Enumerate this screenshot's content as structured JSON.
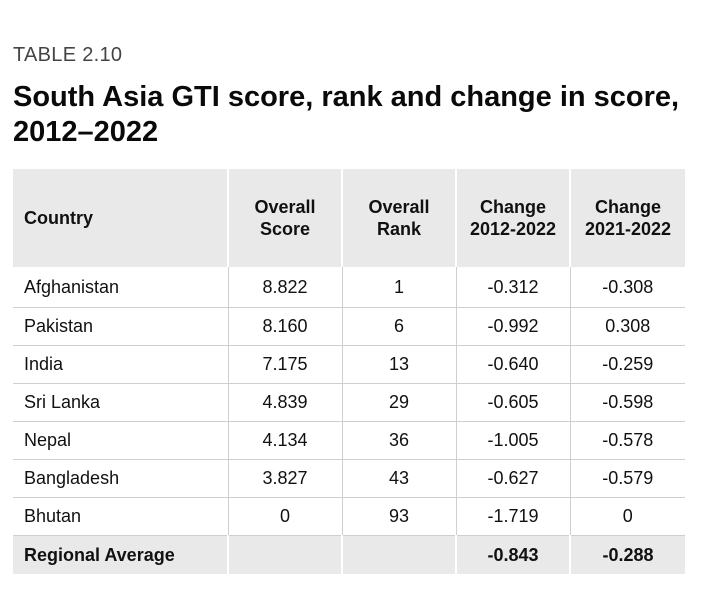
{
  "header": {
    "table_label": "TABLE 2.10",
    "title": "South Asia GTI score, rank and change in score, 2012–2022"
  },
  "columns": {
    "country": "Country",
    "overall_score": [
      "Overall",
      "Score"
    ],
    "overall_rank": [
      "Overall",
      "Rank"
    ],
    "change_2012_2022": [
      "Change",
      "2012-2022"
    ],
    "change_2021_2022": [
      "Change",
      "2021-2022"
    ]
  },
  "colors": {
    "negative_change": "#5aaf95",
    "positive_change": "#d12c2c",
    "header_background": "#e9e9ea"
  },
  "rows": [
    {
      "country": "Afghanistan",
      "score": "8.822",
      "rank": "1",
      "change_2012_2022": "-0.312",
      "change_2021_2022": "-0.308"
    },
    {
      "country": "Pakistan",
      "score": "8.160",
      "rank": "6",
      "change_2012_2022": "-0.992",
      "change_2021_2022": "0.308"
    },
    {
      "country": "India",
      "score": "7.175",
      "rank": "13",
      "change_2012_2022": "-0.640",
      "change_2021_2022": "-0.259"
    },
    {
      "country": "Sri Lanka",
      "score": "4.839",
      "rank": "29",
      "change_2012_2022": "-0.605",
      "change_2021_2022": "-0.598"
    },
    {
      "country": "Nepal",
      "score": "4.134",
      "rank": "36",
      "change_2012_2022": "-1.005",
      "change_2021_2022": "-0.578"
    },
    {
      "country": "Bangladesh",
      "score": "3.827",
      "rank": "43",
      "change_2012_2022": "-0.627",
      "change_2021_2022": "-0.579"
    },
    {
      "country": "Bhutan",
      "score": "0",
      "rank": "93",
      "change_2012_2022": "-1.719",
      "change_2021_2022": "0"
    }
  ],
  "regional_average": {
    "label": "Regional Average",
    "score": "",
    "rank": "",
    "change_2012_2022": "-0.843",
    "change_2021_2022": "-0.288"
  }
}
